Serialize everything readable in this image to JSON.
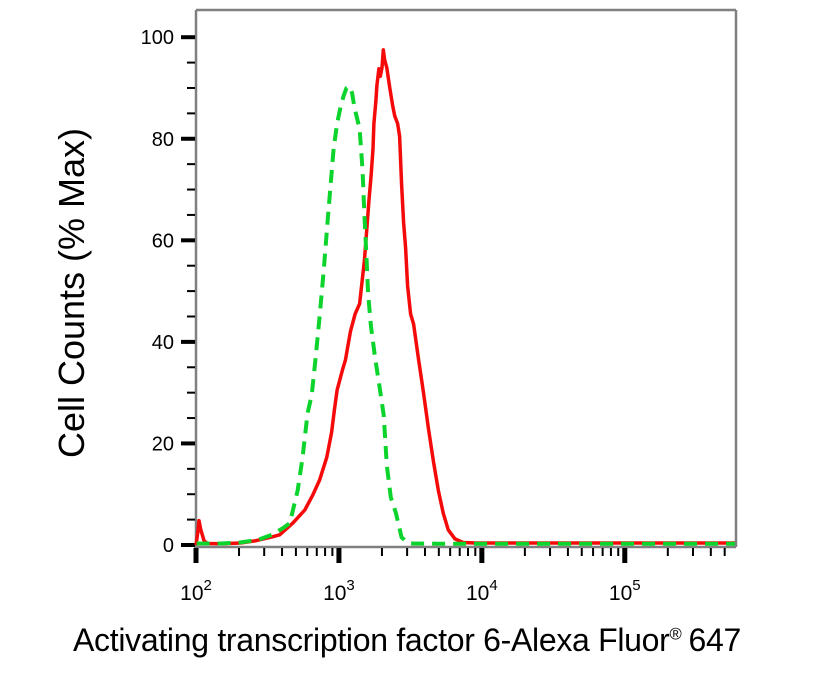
{
  "figure": {
    "background": "#ffffff"
  },
  "chart_data": {
    "type": "line",
    "subtype": "flow-cytometry-histogram",
    "title": "",
    "xlabel": "Activating transcription factor 6-Alexa Fluor® 647",
    "xlabel_parts": {
      "pre": "Activating transcription factor 6-Alexa Fluor",
      "registered_mark": "®",
      "post": "647"
    },
    "ylabel": "Cell Counts (% Max)",
    "x_scale": "log10",
    "x_range": [
      100,
      600000
    ],
    "y_range": [
      0,
      105
    ],
    "grid": false,
    "legend_position": "none",
    "axis_color": "#808080",
    "tick_color": "#000000",
    "y_ticks": {
      "major_values": [
        0,
        20,
        40,
        60,
        80,
        100
      ],
      "major_labels": [
        "0",
        "20",
        "40",
        "60",
        "80",
        "100"
      ],
      "minor_step": 5
    },
    "x_ticks": {
      "major": [
        {
          "value": 100,
          "base": "10",
          "exponent": "2"
        },
        {
          "value": 1000,
          "base": "10",
          "exponent": "3"
        },
        {
          "value": 10000,
          "base": "10",
          "exponent": "4"
        },
        {
          "value": 100000,
          "base": "10",
          "exponent": "5"
        }
      ],
      "minor_rule": "2-9 per decade, log spaced"
    },
    "series": [
      {
        "name": "stained-sample-red-solid",
        "color": "#f50a0a",
        "line_style": "solid",
        "line_width": 3.5,
        "points": [
          [
            100,
            0
          ],
          [
            103,
            2.5
          ],
          [
            105,
            4.8
          ],
          [
            108,
            3
          ],
          [
            114,
            0.8
          ],
          [
            121,
            0.3
          ],
          [
            150,
            0.25
          ],
          [
            205,
            0.4
          ],
          [
            258,
            0.8
          ],
          [
            340,
            1.6
          ],
          [
            385,
            2
          ],
          [
            475,
            4.3
          ],
          [
            577,
            6.9
          ],
          [
            655,
            9.8
          ],
          [
            733,
            12.8
          ],
          [
            822,
            17.3
          ],
          [
            889,
            22.2
          ],
          [
            930,
            26.6
          ],
          [
            971,
            30.5
          ],
          [
            1060,
            34.5
          ],
          [
            1112,
            36.5
          ],
          [
            1203,
            42
          ],
          [
            1297,
            45.5
          ],
          [
            1395,
            47.5
          ],
          [
            1507,
            56
          ],
          [
            1575,
            63
          ],
          [
            1624,
            68
          ],
          [
            1676,
            72.5
          ],
          [
            1730,
            78
          ],
          [
            1758,
            83
          ],
          [
            1815,
            87.5
          ],
          [
            1844,
            90.5
          ],
          [
            1904,
            93.8
          ],
          [
            1949,
            92.3
          ],
          [
            2000,
            94
          ],
          [
            2045,
            97.5
          ],
          [
            2090,
            95.5
          ],
          [
            2163,
            94
          ],
          [
            2268,
            90
          ],
          [
            2378,
            86.5
          ],
          [
            2455,
            84.5
          ],
          [
            2573,
            83
          ],
          [
            2657,
            80.5
          ],
          [
            2745,
            71
          ],
          [
            2835,
            63.5
          ],
          [
            2928,
            58.5
          ],
          [
            3025,
            51
          ],
          [
            3175,
            45.5
          ],
          [
            3332,
            43.5
          ],
          [
            3608,
            36.5
          ],
          [
            3906,
            30
          ],
          [
            4229,
            23
          ],
          [
            4579,
            16.5
          ],
          [
            4958,
            10.8
          ],
          [
            5368,
            6.3
          ],
          [
            5812,
            3
          ],
          [
            6487,
            1.2
          ],
          [
            7383,
            0.5
          ],
          [
            9000,
            0.4
          ],
          [
            20000,
            0.4
          ],
          [
            60000,
            0.4
          ],
          [
            200000,
            0.4
          ],
          [
            590000,
            0.4
          ]
        ]
      },
      {
        "name": "control-green-dashed",
        "color": "#0cd42c",
        "line_style": "dashed",
        "dash_pattern": [
          13,
          8
        ],
        "line_width": 4,
        "points": [
          [
            101,
            0.3
          ],
          [
            150,
            0.3
          ],
          [
            203,
            0.5
          ],
          [
            271,
            1
          ],
          [
            339,
            2
          ],
          [
            405,
            3.3
          ],
          [
            453,
            4.3
          ],
          [
            515,
            10.8
          ],
          [
            557,
            17.3
          ],
          [
            604,
            26
          ],
          [
            645,
            29.5
          ],
          [
            688,
            37
          ],
          [
            733,
            45
          ],
          [
            782,
            54
          ],
          [
            834,
            64
          ],
          [
            918,
            78
          ],
          [
            971,
            83
          ],
          [
            1030,
            86.5
          ],
          [
            1080,
            88.5
          ],
          [
            1130,
            90
          ],
          [
            1188,
            90.3
          ],
          [
            1237,
            89
          ],
          [
            1288,
            86
          ],
          [
            1395,
            82
          ],
          [
            1462,
            74
          ],
          [
            1507,
            65
          ],
          [
            1553,
            57.5
          ],
          [
            1600,
            49.5
          ],
          [
            1676,
            43
          ],
          [
            1787,
            37
          ],
          [
            1904,
            32
          ],
          [
            2058,
            25.6
          ],
          [
            2163,
            15.7
          ],
          [
            2305,
            9.4
          ],
          [
            2503,
            6.3
          ],
          [
            2745,
            1.5
          ],
          [
            3066,
            0.3
          ],
          [
            5000,
            0.25
          ],
          [
            20000,
            0.25
          ],
          [
            100000,
            0.25
          ],
          [
            590000,
            0.25
          ]
        ]
      }
    ]
  }
}
